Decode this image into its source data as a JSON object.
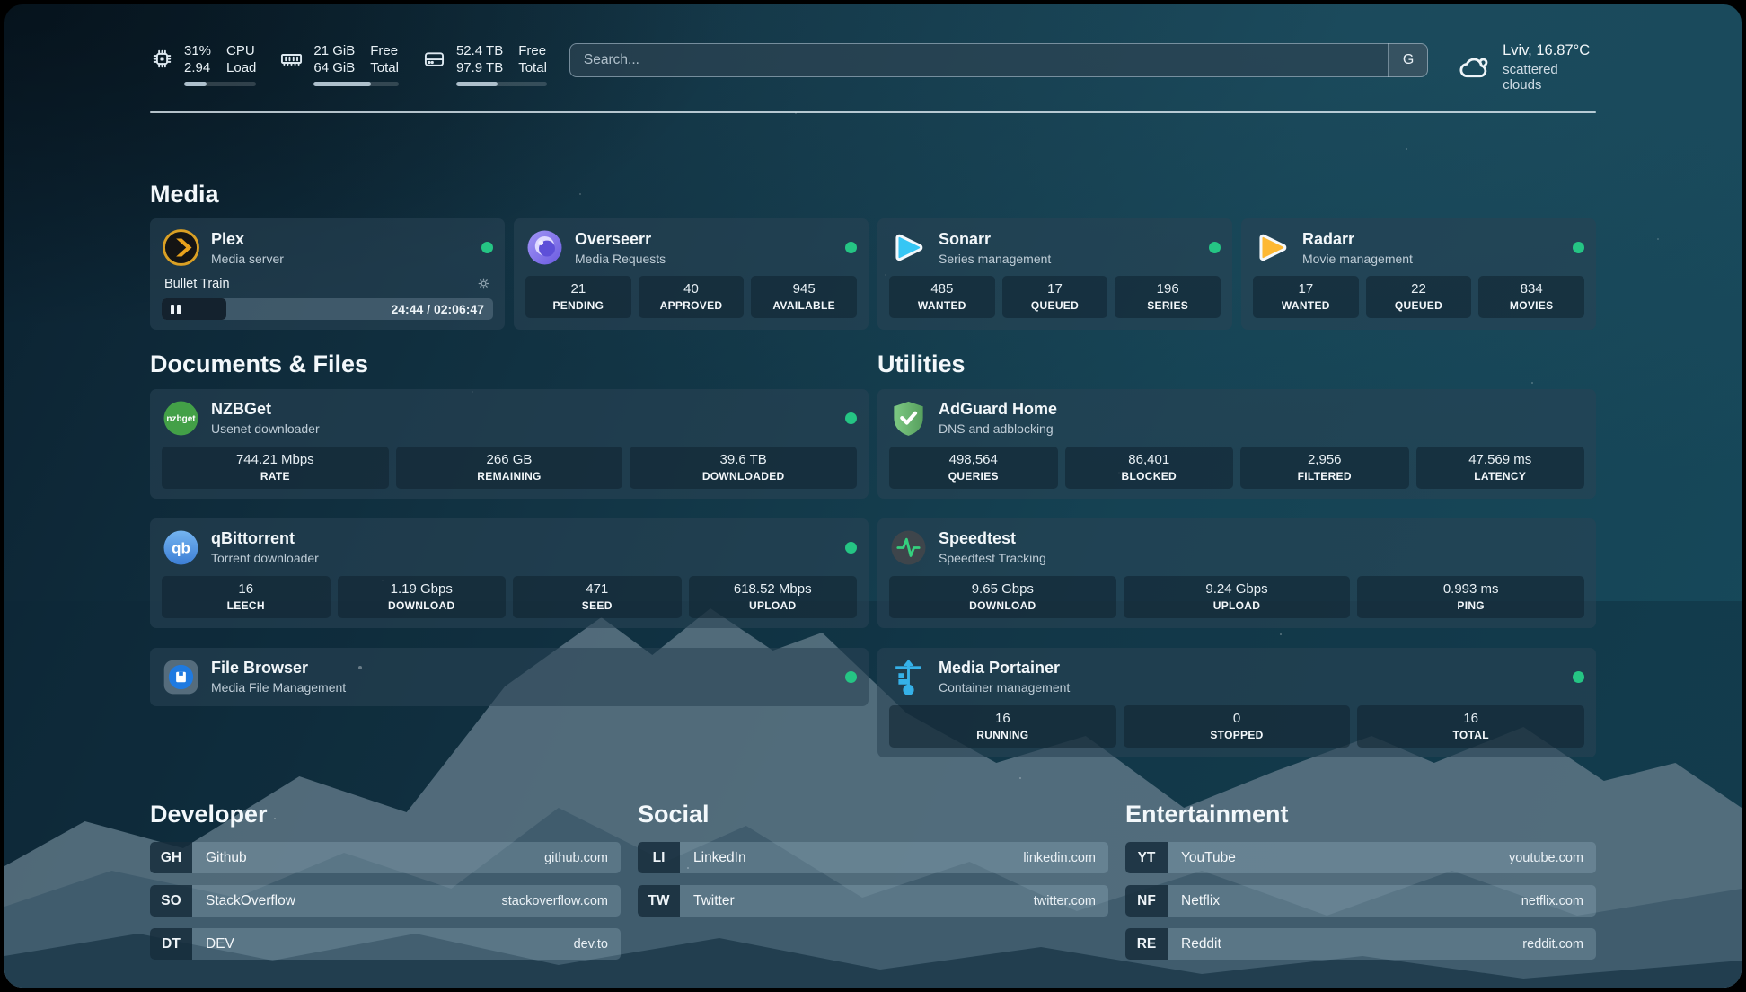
{
  "header": {
    "metrics": [
      {
        "value1": "31%",
        "value2": "2.94",
        "label1": "CPU",
        "label2": "Load",
        "progress": 31
      },
      {
        "value1": "21 GiB",
        "value2": "64 GiB",
        "label1": "Free",
        "label2": "Total",
        "progress": 67
      },
      {
        "value1": "52.4 TB",
        "value2": "97.9 TB",
        "label1": "Free",
        "label2": "Total",
        "progress": 46
      }
    ],
    "search": {
      "placeholder": "Search...",
      "button": "G"
    },
    "weather": {
      "summary": "Lviv, 16.87°C",
      "condition": "scattered clouds"
    }
  },
  "media": {
    "title": "Media",
    "plex": {
      "name": "Plex",
      "desc": "Media server",
      "now_playing": "Bullet Train",
      "time": "24:44 / 02:06:47",
      "progress": 19.5
    },
    "overseerr": {
      "name": "Overseerr",
      "desc": "Media Requests",
      "stats": [
        {
          "value": "21",
          "label": "PENDING"
        },
        {
          "value": "40",
          "label": "APPROVED"
        },
        {
          "value": "945",
          "label": "AVAILABLE"
        }
      ]
    },
    "sonarr": {
      "name": "Sonarr",
      "desc": "Series management",
      "stats": [
        {
          "value": "485",
          "label": "WANTED"
        },
        {
          "value": "17",
          "label": "QUEUED"
        },
        {
          "value": "196",
          "label": "SERIES"
        }
      ]
    },
    "radarr": {
      "name": "Radarr",
      "desc": "Movie management",
      "stats": [
        {
          "value": "17",
          "label": "WANTED"
        },
        {
          "value": "22",
          "label": "QUEUED"
        },
        {
          "value": "834",
          "label": "MOVIES"
        }
      ]
    }
  },
  "documents": {
    "title": "Documents & Files",
    "nzbget": {
      "name": "NZBGet",
      "desc": "Usenet downloader",
      "icon_text": "nzbget",
      "stats": [
        {
          "value": "744.21 Mbps",
          "label": "RATE"
        },
        {
          "value": "266 GB",
          "label": "REMAINING"
        },
        {
          "value": "39.6 TB",
          "label": "DOWNLOADED"
        }
      ]
    },
    "qbittorrent": {
      "name": "qBittorrent",
      "desc": "Torrent downloader",
      "icon_text": "qb",
      "stats": [
        {
          "value": "16",
          "label": "LEECH"
        },
        {
          "value": "1.19 Gbps",
          "label": "DOWNLOAD"
        },
        {
          "value": "471",
          "label": "SEED"
        },
        {
          "value": "618.52 Mbps",
          "label": "UPLOAD"
        }
      ]
    },
    "filebrowser": {
      "name": "File Browser",
      "desc": "Media File Management"
    }
  },
  "utilities": {
    "title": "Utilities",
    "adguard": {
      "name": "AdGuard Home",
      "desc": "DNS and adblocking",
      "stats": [
        {
          "value": "498,564",
          "label": "QUERIES"
        },
        {
          "value": "86,401",
          "label": "BLOCKED"
        },
        {
          "value": "2,956",
          "label": "FILTERED"
        },
        {
          "value": "47.569 ms",
          "label": "LATENCY"
        }
      ]
    },
    "speedtest": {
      "name": "Speedtest",
      "desc": "Speedtest Tracking",
      "stats": [
        {
          "value": "9.65 Gbps",
          "label": "DOWNLOAD"
        },
        {
          "value": "9.24 Gbps",
          "label": "UPLOAD"
        },
        {
          "value": "0.993 ms",
          "label": "PING"
        }
      ]
    },
    "portainer": {
      "name": "Media Portainer",
      "desc": "Container management",
      "stats": [
        {
          "value": "16",
          "label": "RUNNING"
        },
        {
          "value": "0",
          "label": "STOPPED"
        },
        {
          "value": "16",
          "label": "TOTAL"
        }
      ]
    }
  },
  "links": {
    "developer": {
      "title": "Developer",
      "items": [
        {
          "abbr": "GH",
          "name": "Github",
          "url": "github.com"
        },
        {
          "abbr": "SO",
          "name": "StackOverflow",
          "url": "stackoverflow.com"
        },
        {
          "abbr": "DT",
          "name": "DEV",
          "url": "dev.to"
        }
      ]
    },
    "social": {
      "title": "Social",
      "items": [
        {
          "abbr": "LI",
          "name": "LinkedIn",
          "url": "linkedin.com"
        },
        {
          "abbr": "TW",
          "name": "Twitter",
          "url": "twitter.com"
        }
      ]
    },
    "entertainment": {
      "title": "Entertainment",
      "items": [
        {
          "abbr": "YT",
          "name": "YouTube",
          "url": "youtube.com"
        },
        {
          "abbr": "NF",
          "name": "Netflix",
          "url": "netflix.com"
        },
        {
          "abbr": "RE",
          "name": "Reddit",
          "url": "reddit.com"
        }
      ]
    }
  },
  "colors": {
    "status_online": "#25c584",
    "plex": "#e9a21c",
    "sonarr": "#36c6f4",
    "radarr": "#fdb833",
    "overseerr": "#8f7ff2",
    "nzbget": "#43a047",
    "qbittorrent": "#4f93dd",
    "adguard": "#68bc71",
    "speedtest_pulse": "#35d07e",
    "portainer": "#35b1e8",
    "filebrowser": "#1f7ae0"
  }
}
